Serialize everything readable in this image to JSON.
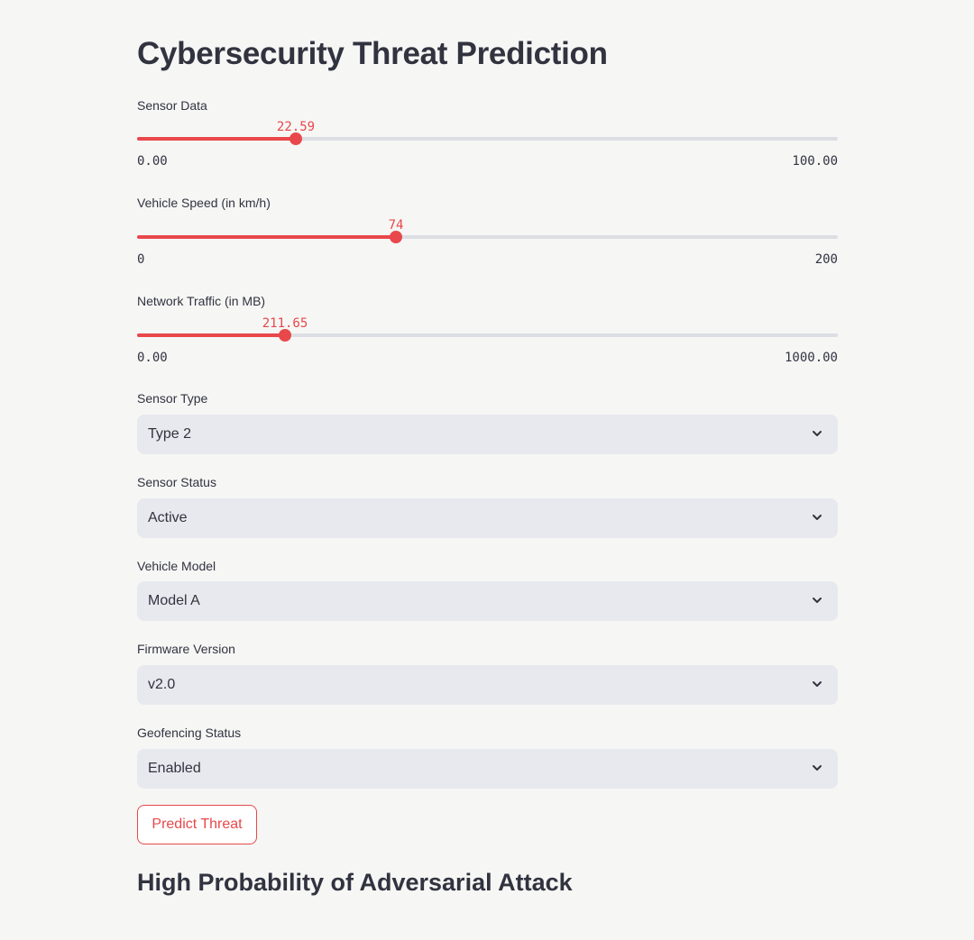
{
  "title": "Cybersecurity Threat Prediction",
  "sliders": [
    {
      "label": "Sensor Data",
      "value": "22.59",
      "min": "0.00",
      "max": "100.00",
      "fraction": 0.2259
    },
    {
      "label": "Vehicle Speed (in km/h)",
      "value": "74",
      "min": "0",
      "max": "200",
      "fraction": 0.37
    },
    {
      "label": "Network Traffic (in MB)",
      "value": "211.65",
      "min": "0.00",
      "max": "1000.00",
      "fraction": 0.21165
    }
  ],
  "selects": [
    {
      "label": "Sensor Type",
      "value": "Type 2"
    },
    {
      "label": "Sensor Status",
      "value": "Active"
    },
    {
      "label": "Vehicle Model",
      "value": "Model A"
    },
    {
      "label": "Firmware Version",
      "value": "v2.0"
    },
    {
      "label": "Geofencing Status",
      "value": "Enabled"
    }
  ],
  "button": {
    "label": "Predict Threat"
  },
  "result": {
    "text": "High Probability of Adversarial Attack"
  },
  "colors": {
    "accent": "#e8484b",
    "text": "#31333f",
    "select_bg": "#e8e9ee",
    "track": "#dcdee4"
  },
  "icons": {
    "select_chevron": "chevron-down-icon"
  }
}
